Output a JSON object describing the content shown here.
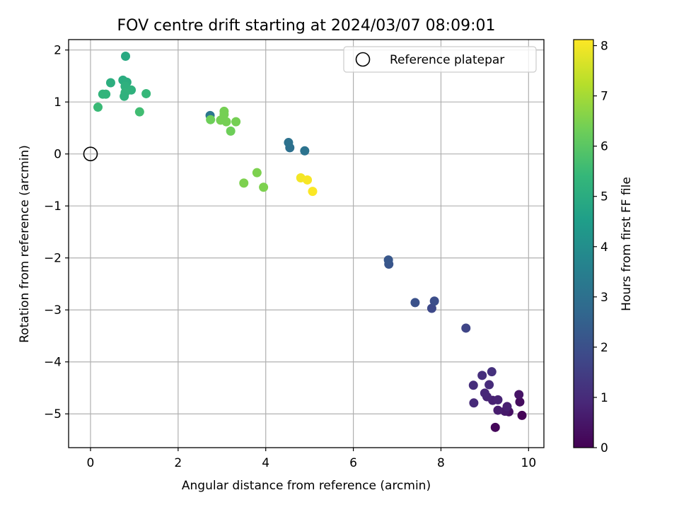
{
  "chart_data": {
    "type": "scatter",
    "title": "FOV centre drift starting at 2024/03/07 08:09:01",
    "xlabel": "Angular distance from reference (arcmin)",
    "ylabel": "Rotation from reference (arcmin)",
    "xlim": [
      -0.5,
      10.35
    ],
    "ylim": [
      -5.65,
      2.2
    ],
    "xticks": [
      0,
      2,
      4,
      6,
      8,
      10
    ],
    "yticks": [
      2,
      1,
      0,
      -1,
      -2,
      -3,
      -4,
      -5
    ],
    "grid": true,
    "colormap": "viridis",
    "colormap_stops": [
      "#440154",
      "#482878",
      "#3e4989",
      "#31688e",
      "#26828e",
      "#1f9e89",
      "#35b779",
      "#6ece58",
      "#b5de2b",
      "#fde725"
    ],
    "colorbar": {
      "label": "Hours from first FF file",
      "range": [
        0,
        8.12
      ],
      "ticks": [
        0,
        1,
        2,
        3,
        4,
        5,
        6,
        7,
        8
      ]
    },
    "legend": {
      "position": "top-right",
      "entries": [
        {
          "label": "Reference platepar",
          "marker": "open-circle"
        }
      ]
    },
    "reference_point": {
      "x": 0,
      "y": 0
    },
    "points": [
      {
        "x": 9.85,
        "y": -5.03,
        "hours": 0.05
      },
      {
        "x": 9.24,
        "y": -5.26,
        "hours": 0.15
      },
      {
        "x": 9.8,
        "y": -4.77,
        "hours": 0.25
      },
      {
        "x": 9.55,
        "y": -4.96,
        "hours": 0.35
      },
      {
        "x": 9.78,
        "y": -4.63,
        "hours": 0.45
      },
      {
        "x": 9.46,
        "y": -4.95,
        "hours": 0.55
      },
      {
        "x": 9.3,
        "y": -4.93,
        "hours": 0.65
      },
      {
        "x": 9.51,
        "y": -4.86,
        "hours": 0.7
      },
      {
        "x": 9.18,
        "y": -4.74,
        "hours": 0.75
      },
      {
        "x": 9.3,
        "y": -4.73,
        "hours": 0.8
      },
      {
        "x": 9.05,
        "y": -4.67,
        "hours": 0.85
      },
      {
        "x": 9.0,
        "y": -4.6,
        "hours": 0.9
      },
      {
        "x": 8.75,
        "y": -4.79,
        "hours": 0.95
      },
      {
        "x": 9.1,
        "y": -4.44,
        "hours": 1.0
      },
      {
        "x": 8.74,
        "y": -4.45,
        "hours": 1.05
      },
      {
        "x": 8.94,
        "y": -4.26,
        "hours": 1.1
      },
      {
        "x": 9.16,
        "y": -4.19,
        "hours": 1.15
      },
      {
        "x": 8.57,
        "y": -3.35,
        "hours": 1.7
      },
      {
        "x": 7.79,
        "y": -2.97,
        "hours": 1.8
      },
      {
        "x": 7.85,
        "y": -2.83,
        "hours": 1.95
      },
      {
        "x": 7.41,
        "y": -2.86,
        "hours": 2.05
      },
      {
        "x": 6.81,
        "y": -2.12,
        "hours": 2.15
      },
      {
        "x": 6.8,
        "y": -2.04,
        "hours": 2.2
      },
      {
        "x": 4.55,
        "y": 0.12,
        "hours": 3.0
      },
      {
        "x": 4.52,
        "y": 0.22,
        "hours": 3.05
      },
      {
        "x": 4.89,
        "y": 0.06,
        "hours": 3.1
      },
      {
        "x": 2.73,
        "y": 0.74,
        "hours": 3.2
      },
      {
        "x": 0.8,
        "y": 1.88,
        "hours": 4.9
      },
      {
        "x": 0.74,
        "y": 1.42,
        "hours": 5.0
      },
      {
        "x": 0.83,
        "y": 1.38,
        "hours": 5.05
      },
      {
        "x": 0.46,
        "y": 1.37,
        "hours": 5.1
      },
      {
        "x": 0.79,
        "y": 1.3,
        "hours": 5.15
      },
      {
        "x": 0.93,
        "y": 1.23,
        "hours": 5.2
      },
      {
        "x": 0.79,
        "y": 1.18,
        "hours": 5.25
      },
      {
        "x": 0.28,
        "y": 1.15,
        "hours": 5.3
      },
      {
        "x": 0.35,
        "y": 1.15,
        "hours": 5.3
      },
      {
        "x": 1.27,
        "y": 1.16,
        "hours": 5.4
      },
      {
        "x": 0.77,
        "y": 1.11,
        "hours": 5.2
      },
      {
        "x": 0.17,
        "y": 0.9,
        "hours": 5.5
      },
      {
        "x": 1.12,
        "y": 0.81,
        "hours": 5.6
      },
      {
        "x": 3.05,
        "y": 0.82,
        "hours": 6.4
      },
      {
        "x": 3.05,
        "y": 0.76,
        "hours": 6.4
      },
      {
        "x": 2.74,
        "y": 0.66,
        "hours": 6.3
      },
      {
        "x": 2.97,
        "y": 0.65,
        "hours": 6.4
      },
      {
        "x": 3.1,
        "y": 0.62,
        "hours": 6.4
      },
      {
        "x": 3.32,
        "y": 0.62,
        "hours": 6.4
      },
      {
        "x": 3.2,
        "y": 0.44,
        "hours": 6.3
      },
      {
        "x": 3.8,
        "y": -0.36,
        "hours": 6.5
      },
      {
        "x": 3.5,
        "y": -0.56,
        "hours": 6.5
      },
      {
        "x": 3.95,
        "y": -0.64,
        "hours": 6.5
      },
      {
        "x": 4.8,
        "y": -0.46,
        "hours": 8.0
      },
      {
        "x": 4.95,
        "y": -0.5,
        "hours": 8.05
      },
      {
        "x": 5.07,
        "y": -0.72,
        "hours": 8.1
      }
    ]
  }
}
